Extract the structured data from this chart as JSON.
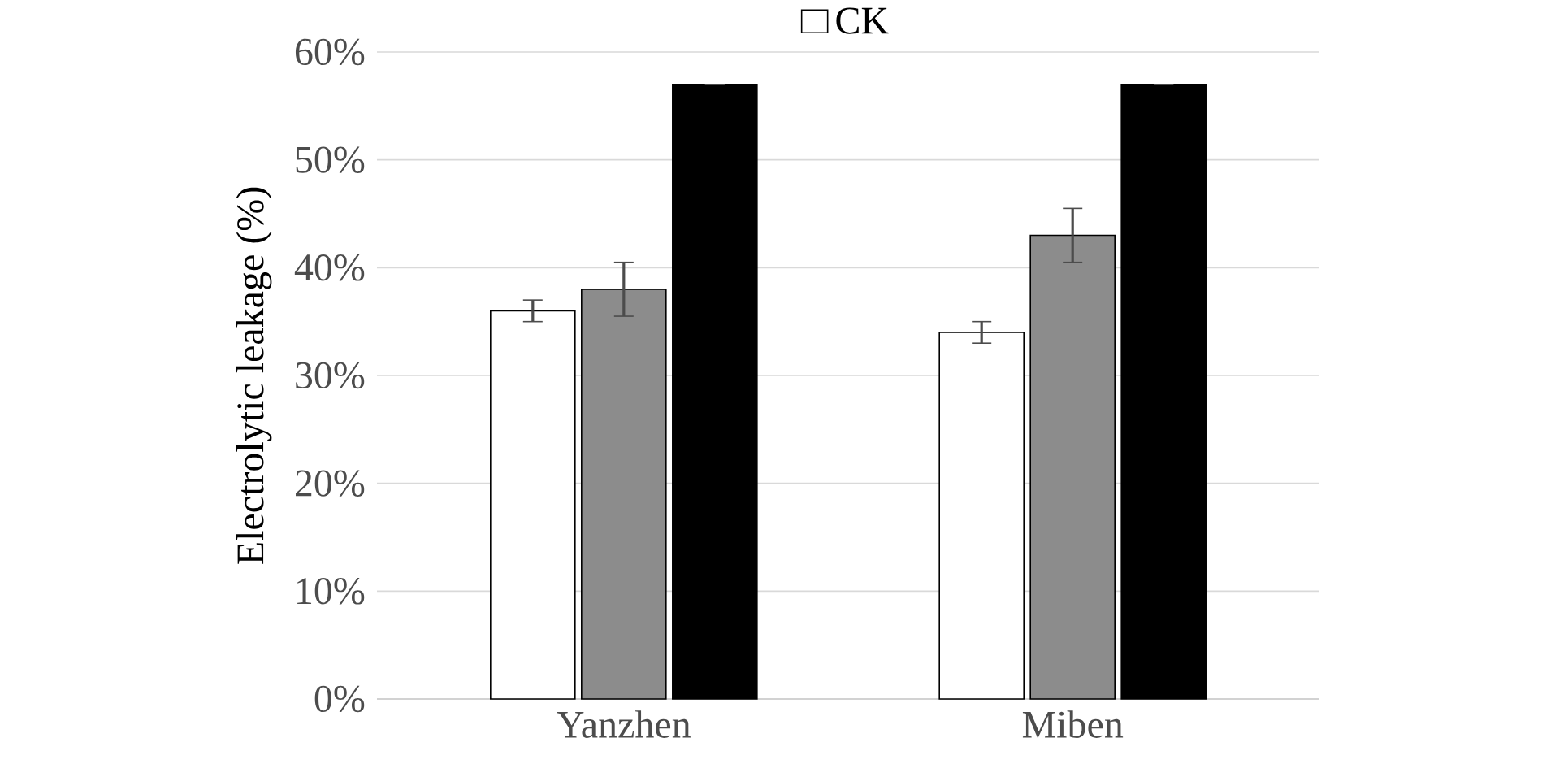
{
  "chart_data": {
    "type": "bar",
    "ylabel": "Electrolytic leakage (%)",
    "categories": [
      "Yanzhen",
      "Miben"
    ],
    "series": [
      {
        "name": "CK",
        "color": "#ffffff",
        "values": [
          36,
          34
        ],
        "errors": [
          1,
          1
        ]
      },
      {
        "color": "#8c8c8c",
        "values": [
          38,
          43
        ],
        "errors": [
          2.5,
          2.5
        ]
      },
      {
        "color": "#000000",
        "values": [
          57,
          57
        ],
        "errors": [
          0,
          0
        ]
      }
    ],
    "ylim": [
      0,
      60
    ],
    "yticks": [
      {
        "value": 0,
        "label": "0%"
      },
      {
        "value": 10,
        "label": "10%"
      },
      {
        "value": 20,
        "label": "20%"
      },
      {
        "value": 30,
        "label": "30%"
      },
      {
        "value": 40,
        "label": "40%"
      },
      {
        "value": 50,
        "label": "50%"
      },
      {
        "value": 60,
        "label": "60%"
      }
    ],
    "grid": "y",
    "legend": "top"
  }
}
